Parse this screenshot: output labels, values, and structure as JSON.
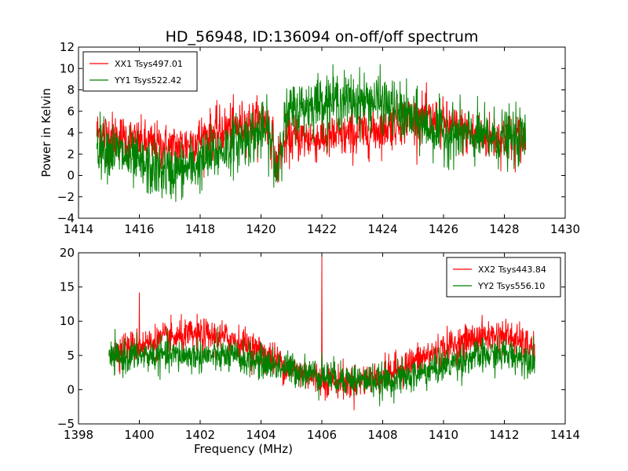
{
  "figure": {
    "title": "HD_56948, ID:136094 on-off/off spectrum",
    "colors": {
      "xx": "#ff0000",
      "yy": "#008000",
      "axes": "#000000",
      "background": "#ffffff"
    }
  },
  "chart_data": [
    {
      "type": "line",
      "title": "HD_56948, ID:136094 on-off/off spectrum",
      "xlabel": "",
      "ylabel": "Power in Kelvin",
      "xlim": [
        1414,
        1430
      ],
      "ylim": [
        -4,
        12
      ],
      "xticks": [
        1414,
        1416,
        1418,
        1420,
        1422,
        1424,
        1426,
        1428,
        1430
      ],
      "yticks": [
        -4,
        -2,
        0,
        2,
        4,
        6,
        8,
        10,
        12
      ],
      "x_range_data": [
        1414.6,
        1428.7
      ],
      "legend_position": "upper-left",
      "grid": false,
      "series": [
        {
          "name": "XX1 Tsys497.01",
          "color": "#ff0000",
          "noise": 1.1,
          "x": [
            1414.6,
            1415,
            1415.5,
            1416,
            1416.5,
            1417,
            1417.5,
            1418,
            1418.5,
            1419,
            1419.5,
            1420,
            1420.2,
            1420.4,
            1420.5,
            1420.6,
            1420.8,
            1421,
            1421.5,
            1422,
            1422.5,
            1423,
            1423.5,
            1424,
            1424.5,
            1425,
            1425.5,
            1426,
            1426.5,
            1427,
            1427.5,
            1428,
            1428.7
          ],
          "y": [
            4.0,
            3.8,
            3.5,
            3.0,
            2.8,
            2.6,
            2.8,
            3.5,
            4.0,
            4.5,
            4.8,
            5.0,
            5.0,
            3.0,
            0.5,
            2.0,
            3.2,
            3.5,
            3.5,
            3.5,
            3.6,
            3.8,
            4.0,
            4.5,
            5.0,
            5.5,
            5.2,
            4.8,
            4.2,
            3.8,
            3.6,
            3.5,
            3.5
          ]
        },
        {
          "name": "YY1 Tsys522.42",
          "color": "#008000",
          "noise": 1.3,
          "x": [
            1414.6,
            1415,
            1415.5,
            1416,
            1416.5,
            1417,
            1417.5,
            1418,
            1418.5,
            1419,
            1419.5,
            1420,
            1420.2,
            1420.4,
            1420.5,
            1420.6,
            1420.8,
            1421,
            1421.5,
            1422,
            1422.5,
            1423,
            1423.5,
            1424,
            1424.5,
            1425,
            1425.5,
            1426,
            1426.5,
            1427,
            1427.5,
            1428,
            1428.7
          ],
          "y": [
            3.0,
            2.5,
            1.8,
            1.0,
            0.5,
            0.3,
            0.6,
            1.2,
            2.0,
            2.8,
            3.5,
            4.0,
            4.2,
            2.5,
            0.0,
            2.5,
            5.0,
            6.0,
            6.5,
            7.0,
            7.0,
            7.0,
            7.0,
            6.8,
            6.0,
            5.2,
            4.5,
            4.0,
            3.8,
            3.6,
            3.5,
            3.5,
            3.5
          ]
        }
      ]
    },
    {
      "type": "line",
      "title": "",
      "xlabel": "Frequency (MHz)",
      "ylabel": "",
      "xlim": [
        1398,
        1414
      ],
      "ylim": [
        -5,
        20
      ],
      "xticks": [
        1398,
        1400,
        1402,
        1404,
        1406,
        1408,
        1410,
        1412,
        1414
      ],
      "yticks": [
        -5,
        0,
        5,
        10,
        15,
        20
      ],
      "x_range_data": [
        1399,
        1413
      ],
      "legend_position": "upper-right",
      "grid": false,
      "series": [
        {
          "name": "XX2 Tsys443.84",
          "color": "#ff0000",
          "noise": 1.2,
          "x": [
            1399,
            1400,
            1401,
            1402,
            1403,
            1404,
            1405,
            1406,
            1407,
            1408,
            1409,
            1410,
            1411,
            1412,
            1413
          ],
          "y": [
            5.5,
            6.5,
            7.5,
            8.0,
            7.5,
            5.5,
            3.0,
            1.5,
            1.0,
            2.0,
            4.0,
            6.0,
            7.5,
            8.0,
            6.0
          ],
          "spikes": [
            {
              "x": 1400.0,
              "y": 14.2
            },
            {
              "x": 1406.0,
              "y": 19.6
            }
          ]
        },
        {
          "name": "YY2 Tsys556.10",
          "color": "#008000",
          "noise": 1.2,
          "x": [
            1399,
            1400,
            1401,
            1402,
            1403,
            1404,
            1405,
            1406,
            1407,
            1408,
            1409,
            1410,
            1411,
            1412,
            1413
          ],
          "y": [
            4.5,
            5.0,
            5.0,
            5.0,
            4.8,
            4.0,
            3.0,
            2.0,
            1.5,
            1.2,
            2.0,
            3.5,
            4.8,
            5.2,
            4.5
          ],
          "spikes": [
            {
              "x": 1406.0,
              "y": 5.5
            }
          ]
        }
      ]
    }
  ]
}
